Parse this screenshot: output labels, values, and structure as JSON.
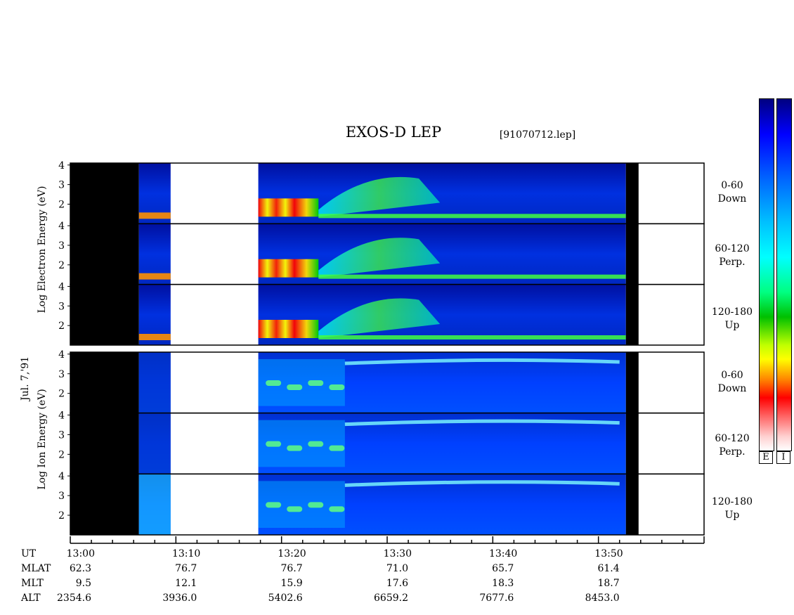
{
  "header": {
    "title": "EXOS-D LEP",
    "file": "[91070712.lep]"
  },
  "date_label": "Jul. 7,'91",
  "electron_panel": {
    "ylabel_words": [
      "Log",
      "Electron",
      "Energy",
      "(eV)"
    ],
    "bands": [
      {
        "range": "0-60",
        "dir": "Down"
      },
      {
        "range": "60-120",
        "dir": "Perp."
      },
      {
        "range": "120-180",
        "dir": "Up"
      }
    ]
  },
  "ion_panel": {
    "ylabel_words": [
      "Log",
      "Ion",
      "Energy",
      "(eV)"
    ],
    "bands": [
      {
        "range": "0-60",
        "dir": "Down"
      },
      {
        "range": "60-120",
        "dir": "Perp."
      },
      {
        "range": "120-180",
        "dir": "Up"
      }
    ]
  },
  "colorbar_labels": [
    "E",
    "I"
  ],
  "colors": {
    "nodata": "#000000",
    "ramp": [
      "#ffffff",
      "#ff0000",
      "#ffff00",
      "#00d000",
      "#00ffff",
      "#0060ff",
      "#0000a0"
    ]
  },
  "chart_data": {
    "type": "heatmap",
    "title": "EXOS-D LEP",
    "x_axis": {
      "unit": "UT",
      "range": [
        "13:00",
        "14:00"
      ],
      "tick_labels": [
        "13:00",
        "13:10",
        "13:20",
        "13:30",
        "13:40",
        "13:50"
      ],
      "rows": [
        {
          "name": "UT",
          "values": [
            "13:00",
            "13:10",
            "13:20",
            "13:30",
            "13:40",
            "13:50"
          ]
        },
        {
          "name": "MLAT",
          "values": [
            "62.3",
            "76.7",
            "76.7",
            "71.0",
            "65.7",
            "61.4"
          ]
        },
        {
          "name": "MLT",
          "values": [
            "9.5",
            "12.1",
            "15.9",
            "17.6",
            "18.3",
            "18.7"
          ]
        },
        {
          "name": "ALT",
          "values": [
            "2354.6",
            "3936.0",
            "5402.6",
            "6659.2",
            "7677.6",
            "8453.0"
          ]
        }
      ]
    },
    "y_axis": {
      "scale": "log10 energy (eV)",
      "ticks": [
        "2",
        "3",
        "4"
      ],
      "range": [
        1,
        4.1
      ]
    },
    "data_segments_minutes": [
      {
        "start": 0,
        "end": 6.5,
        "state": "no-data"
      },
      {
        "start": 6.5,
        "end": 9.5,
        "state": "data"
      },
      {
        "start": 9.5,
        "end": 17.8,
        "state": "gap"
      },
      {
        "start": 17.8,
        "end": 52.6,
        "state": "data"
      },
      {
        "start": 52.6,
        "end": 53.8,
        "state": "no-data"
      },
      {
        "start": 53.8,
        "end": 60,
        "state": "gap"
      }
    ]
  }
}
